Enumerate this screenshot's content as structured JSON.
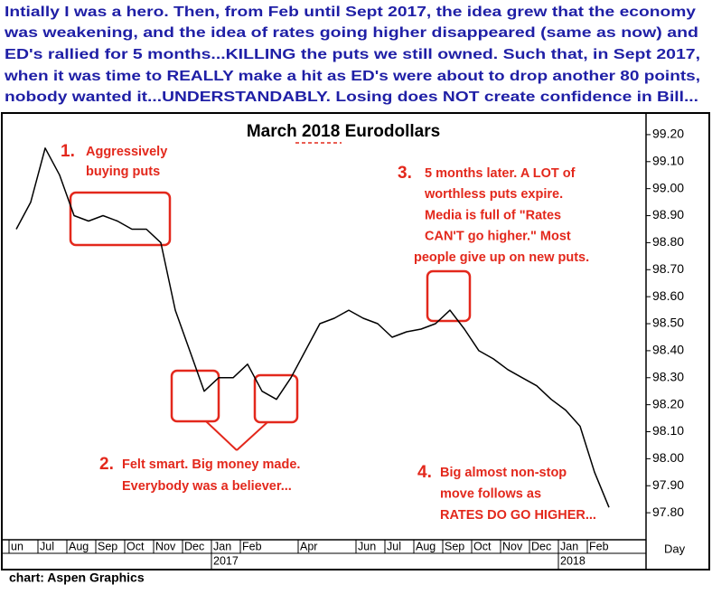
{
  "header": {
    "lines": [
      "Intially I was a hero. Then, from Feb until Sept 2017, the idea grew that the economy",
      "was weakening, and the idea of rates going higher disappeared (same as now) and",
      "ED's rallied for 5 months...KILLING the puts we still owned. Such that, in Sept 2017,",
      "when it was time to REALLY make a hit as ED's were about to drop another 80 points,",
      "nobody wanted it...UNDERSTANDABLY. Losing does NOT create confidence in Bill..."
    ]
  },
  "chart_data": {
    "type": "line",
    "title": "March 2018 Eurodollars",
    "categories": [
      "un",
      null,
      "Jul",
      null,
      "Aug",
      null,
      "Sep",
      null,
      "Oct",
      null,
      "Nov",
      null,
      "Dec",
      null,
      "Jan",
      null,
      "Feb",
      null,
      null,
      null,
      "Apr",
      null,
      null,
      null,
      "Jun",
      null,
      "Jul",
      null,
      "Aug",
      null,
      "Sep",
      null,
      "Oct",
      null,
      "Nov",
      null,
      "Dec",
      null,
      "Jan",
      null,
      "Feb",
      null
    ],
    "series": [
      {
        "name": null,
        "color": "#000000",
        "values": [
          98.85,
          98.95,
          99.15,
          99.05,
          98.9,
          98.88,
          98.9,
          98.88,
          98.85,
          98.85,
          98.8,
          98.55,
          98.4,
          98.25,
          98.3,
          98.3,
          98.35,
          98.25,
          98.22,
          98.3,
          98.4,
          98.5,
          98.52,
          98.55,
          98.52,
          98.5,
          98.45,
          98.47,
          98.48,
          98.5,
          98.55,
          98.48,
          98.4,
          98.37,
          98.33,
          98.3,
          98.27,
          98.22,
          98.18,
          98.12,
          97.95,
          97.82
        ]
      }
    ],
    "years": [
      "2017",
      "2018"
    ],
    "period": "Day",
    "ylim": [
      97.7,
      99.27
    ],
    "yticks": [
      {
        "value": 97.8,
        "label": "97.80"
      },
      {
        "value": 97.9,
        "label": "97.90"
      },
      {
        "value": 98,
        "label": "98.00"
      },
      {
        "value": 98.1,
        "label": "98.10"
      },
      {
        "value": 98.2,
        "label": "98.20"
      },
      {
        "value": 98.3,
        "label": "98.30"
      },
      {
        "value": 98.4,
        "label": "98.40"
      },
      {
        "value": 98.5,
        "label": "98.50"
      },
      {
        "value": 98.6,
        "label": "98.60"
      },
      {
        "value": 98.7,
        "label": "98.70"
      },
      {
        "value": 98.8,
        "label": "98.80"
      },
      {
        "value": 98.9,
        "label": "98.90"
      },
      {
        "value": 99,
        "label": "99.00"
      },
      {
        "value": 99.1,
        "label": "99.10"
      },
      {
        "value": 99.2,
        "label": "99.20"
      }
    ],
    "annotations": [
      {
        "number": "1.",
        "lines": [
          "Aggressively",
          "buying puts"
        ]
      },
      {
        "number": "2.",
        "lines": [
          "Felt smart. Big money made.",
          "Everybody was a believer..."
        ]
      },
      {
        "number": "3.",
        "lines": [
          "5 months later. A LOT of",
          "worthless puts expire.",
          "Media is full of \"Rates",
          "CAN'T go higher.\" Most",
          "people give up on new puts."
        ]
      },
      {
        "number": "4.",
        "lines": [
          "Big almost non-stop",
          "move follows as",
          "RATES DO GO HIGHER..."
        ]
      }
    ]
  },
  "footer": {
    "source": "chart: Aspen Graphics"
  }
}
